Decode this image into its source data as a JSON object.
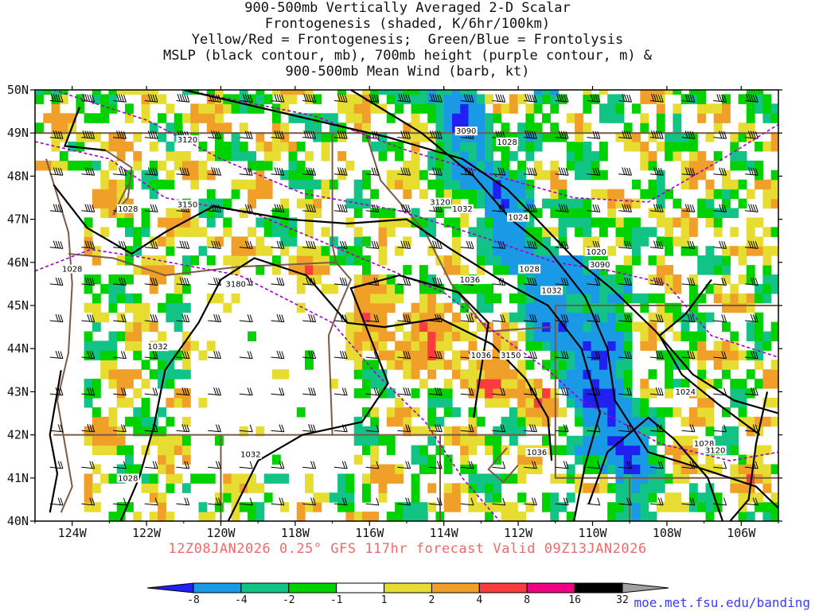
{
  "title_lines": [
    "900-500mb Vertically Averaged 2-D Scalar",
    "Frontogenesis (shaded, K/6hr/100km)",
    "Yellow/Red = Frontogenesis;  Green/Blue = Frontolysis",
    "MSLP (black contour, mb), 700mb height (purple contour, m) &",
    "900-500mb Mean Wind (barb, kt)"
  ],
  "subtitle": "12Z08JAN2026 0.25° GFS 117hr forecast Valid 09Z13JAN2026",
  "credit": "moe.met.fsu.edu/banding",
  "map": {
    "lat_range": [
      40,
      50
    ],
    "lon_range": [
      -125,
      -105
    ],
    "lat_labels": [
      "50N",
      "49N",
      "48N",
      "47N",
      "46N",
      "45N",
      "44N",
      "43N",
      "42N",
      "41N",
      "40N"
    ],
    "lon_labels": [
      "124W",
      "122W",
      "120W",
      "118W",
      "116W",
      "114W",
      "112W",
      "110W",
      "108W",
      "106W"
    ],
    "mslp_labels": [
      {
        "text": "1028",
        "lon": -112.3,
        "lat": 48.75
      },
      {
        "text": "1028",
        "lon": -122.5,
        "lat": 47.2
      },
      {
        "text": "1028",
        "lon": -124.0,
        "lat": 45.8
      },
      {
        "text": "1028",
        "lon": -111.7,
        "lat": 45.8
      },
      {
        "text": "1028",
        "lon": -122.5,
        "lat": 40.95
      },
      {
        "text": "1028",
        "lon": -107.0,
        "lat": 41.75
      },
      {
        "text": "1032",
        "lon": -113.5,
        "lat": 47.2
      },
      {
        "text": "1032",
        "lon": -121.7,
        "lat": 44.0
      },
      {
        "text": "1032",
        "lon": -119.2,
        "lat": 41.5
      },
      {
        "text": "1032",
        "lon": -111.1,
        "lat": 45.3
      },
      {
        "text": "1036",
        "lon": -113.3,
        "lat": 45.55
      },
      {
        "text": "1036",
        "lon": -113.0,
        "lat": 43.8
      },
      {
        "text": "1036",
        "lon": -111.5,
        "lat": 41.55
      },
      {
        "text": "1024",
        "lon": -112.0,
        "lat": 47.0
      },
      {
        "text": "1024",
        "lon": -107.5,
        "lat": 42.95
      },
      {
        "text": "1020",
        "lon": -109.9,
        "lat": 46.2
      }
    ],
    "height_labels": [
      {
        "text": "3090",
        "lon": -113.4,
        "lat": 49.0
      },
      {
        "text": "3090",
        "lon": -109.8,
        "lat": 45.9
      },
      {
        "text": "3120",
        "lon": -120.9,
        "lat": 48.8
      },
      {
        "text": "3120",
        "lon": -114.1,
        "lat": 47.35
      },
      {
        "text": "3120",
        "lon": -106.7,
        "lat": 41.6
      },
      {
        "text": "3150",
        "lon": -120.9,
        "lat": 47.3
      },
      {
        "text": "3150",
        "lon": -112.2,
        "lat": 43.8
      },
      {
        "text": "3180",
        "lon": -119.6,
        "lat": 45.45
      }
    ]
  },
  "colorbar": {
    "labels": [
      "-8",
      "-4",
      "-2",
      "-1",
      "1",
      "2",
      "4",
      "8",
      "16",
      "32"
    ],
    "colors": [
      "#2020f0",
      "#1a9ae6",
      "#12c386",
      "#00d200",
      "#ffffff",
      "#e6dc32",
      "#f0a028",
      "#fa3c3c",
      "#f00082",
      "#000000",
      "#a0a0a0"
    ]
  },
  "colors": {
    "mslp": "#000000",
    "height": "#a000c8",
    "borders": "#7a5a46",
    "subtitle": "#f06a6a",
    "credit": "#3a3aff"
  }
}
